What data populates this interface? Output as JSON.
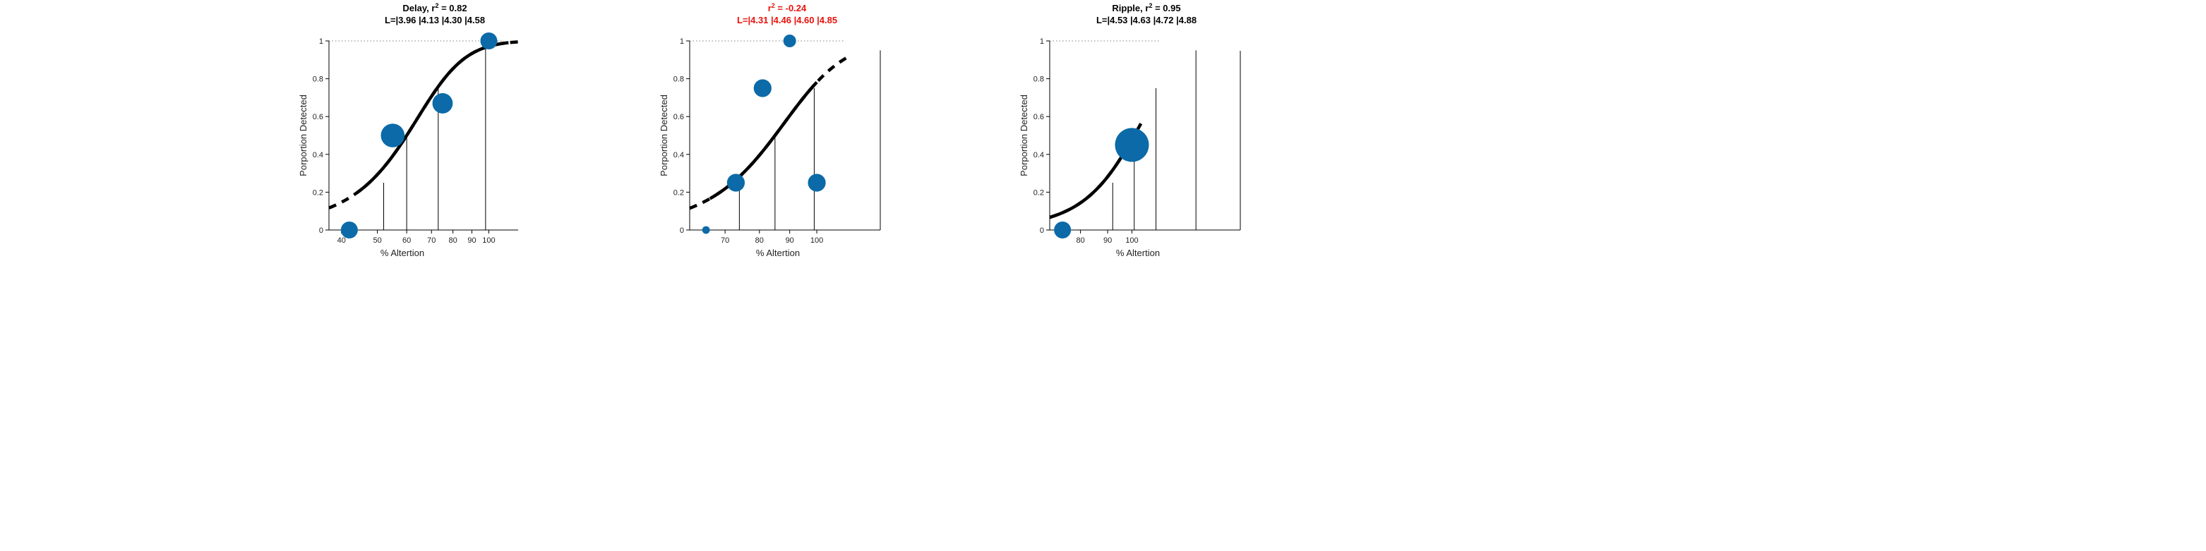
{
  "colors": {
    "marker": "#0b6aa7",
    "curve": "#000000",
    "alert": "#e8120c",
    "text": "#000000"
  },
  "chart_data": [
    {
      "type": "scatter",
      "title_prefix": "Delay, r",
      "title_sup": "2",
      "title_suffix": " = 0.82",
      "levels_text": "L=|3.96 |4.13 |4.30 |4.58",
      "title_color": "#000000",
      "xlabel": "% Altertion",
      "ylabel": "Porportion Detected",
      "log_x": true,
      "xlim": [
        37,
        120
      ],
      "ylim": [
        0,
        1
      ],
      "xticks": [
        40,
        50,
        60,
        70,
        80,
        90,
        100
      ],
      "yticks": [
        0,
        0.2,
        0.4,
        0.6,
        0.8,
        1
      ],
      "ytick_labels": [
        "0",
        "0.2",
        "0.4",
        "0.6",
        "0.8",
        "1"
      ],
      "points": [
        {
          "x": 42,
          "y": 0,
          "size": 1.0
        },
        {
          "x": 55,
          "y": 0.5,
          "size": 1.4
        },
        {
          "x": 75,
          "y": 0.67,
          "size": 1.2
        },
        {
          "x": 100,
          "y": 1.0,
          "size": 1.0
        }
      ],
      "vlines": [
        {
          "x": 52,
          "y": 0.25
        },
        {
          "x": 60,
          "y": 0.5
        },
        {
          "x": 73,
          "y": 0.75
        },
        {
          "x": 98,
          "y": 0.97
        }
      ],
      "curve": {
        "mu": 60,
        "slope": 0.088,
        "solid": [
          44,
          113
        ],
        "dashed": [
          37,
          120
        ]
      },
      "ref_line": {
        "y": 1,
        "x": [
          37,
          110
        ]
      },
      "right_spine": false
    },
    {
      "type": "scatter",
      "title_prefix": "r",
      "title_sup": "2",
      "title_suffix": " = -0.24",
      "levels_text": "L=|4.31 |4.46 |4.60 |4.85",
      "title_color": "#e8120c",
      "xlabel": "% Altertion",
      "ylabel": "Porportion Detected",
      "log_x": true,
      "xlim": [
        61,
        128
      ],
      "ylim": [
        0,
        1
      ],
      "xticks": [
        70,
        80,
        90,
        100
      ],
      "yticks": [
        0,
        0.2,
        0.4,
        0.6,
        0.8,
        1
      ],
      "ytick_labels": [
        "0",
        "0.2",
        "0.4",
        "0.6",
        "0.8",
        "1"
      ],
      "points": [
        {
          "x": 65,
          "y": 0,
          "size": 0.45
        },
        {
          "x": 73,
          "y": 0.25,
          "size": 1.05
        },
        {
          "x": 81,
          "y": 0.75,
          "size": 1.05
        },
        {
          "x": 90,
          "y": 1.0,
          "size": 0.75
        },
        {
          "x": 100,
          "y": 0.25,
          "size": 1.05
        }
      ],
      "vlines": [
        {
          "x": 74,
          "y": 0.25
        },
        {
          "x": 85,
          "y": 0.5
        },
        {
          "x": 99,
          "y": 0.75
        },
        {
          "x": 128,
          "y": 0.95
        }
      ],
      "curve": {
        "mu": 85,
        "slope": 0.085,
        "solid": [
          66,
          100
        ],
        "dashed": [
          61,
          113
        ]
      },
      "ref_line": {
        "y": 1,
        "x": [
          61,
          111
        ]
      },
      "right_spine": false
    },
    {
      "type": "scatter",
      "title_prefix": "Ripple, r",
      "title_sup": "2",
      "title_suffix": " = 0.95",
      "levels_text": "L=|4.53 |4.63 |4.72 |4.88",
      "title_color": "#000000",
      "xlabel": "% Altertion",
      "ylabel": "Porportion Detected",
      "log_x": true,
      "xlim": [
        70,
        160
      ],
      "ylim": [
        0,
        1
      ],
      "xticks": [
        80,
        90,
        100
      ],
      "yticks": [
        0,
        0.2,
        0.4,
        0.6,
        0.8,
        1
      ],
      "ytick_labels": [
        "0",
        "0.2",
        "0.4",
        "0.6",
        "0.8",
        "1"
      ],
      "points": [
        {
          "x": 74,
          "y": 0,
          "size": 1.0
        },
        {
          "x": 100,
          "y": 0.45,
          "size": 2.0
        }
      ],
      "vlines": [
        {
          "x": 92,
          "y": 0.25
        },
        {
          "x": 101,
          "y": 0.5
        },
        {
          "x": 111,
          "y": 0.75
        },
        {
          "x": 132,
          "y": 0.95
        }
      ],
      "curve": {
        "mu": 101,
        "slope": 0.085,
        "solid": [
          70,
          101
        ],
        "dashed": [
          70,
          105
        ]
      },
      "ref_line": {
        "y": 1,
        "x": [
          70,
          113
        ]
      },
      "right_spine": false
    }
  ]
}
